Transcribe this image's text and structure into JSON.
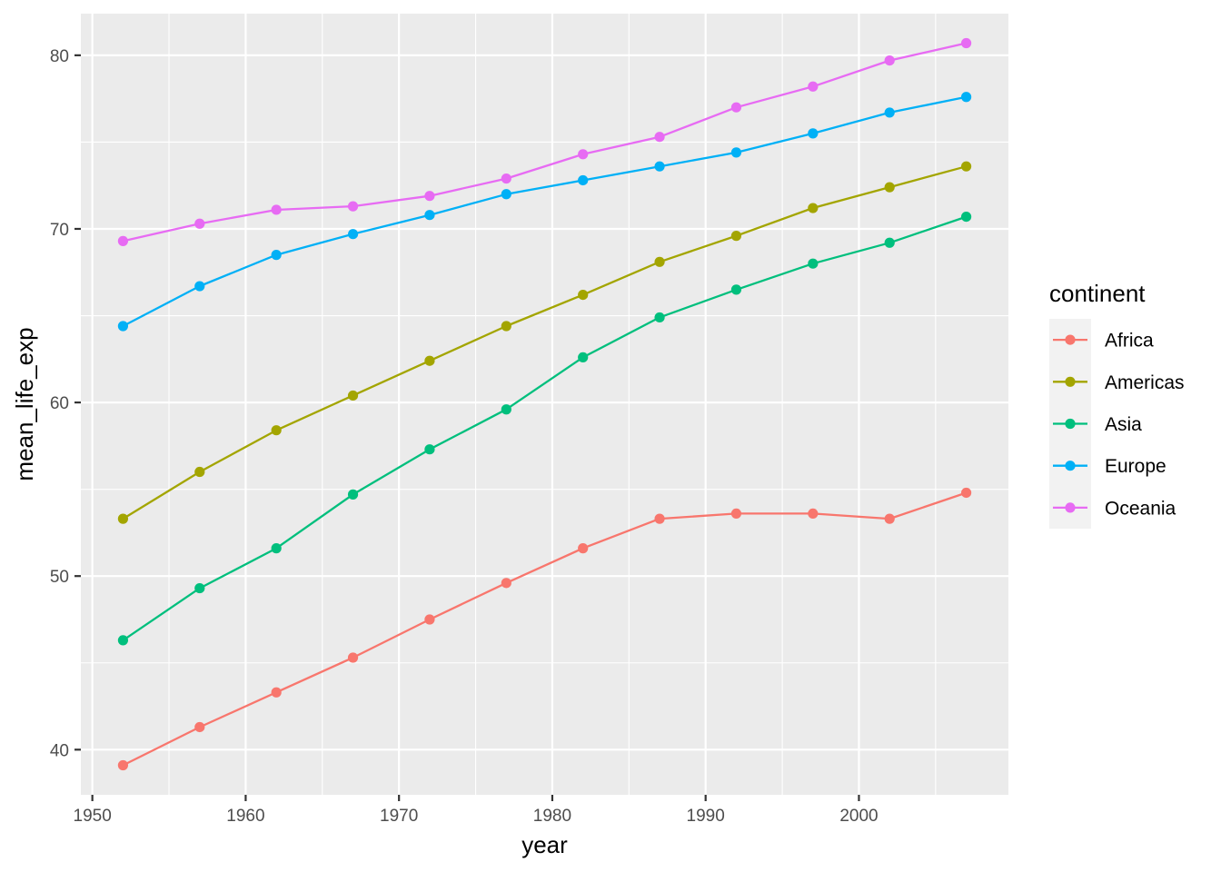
{
  "chart_data": {
    "type": "line",
    "title": "",
    "xlabel": "year",
    "ylabel": "mean_life_exp",
    "xlim": [
      1949.25,
      2009.75
    ],
    "ylim": [
      37.4,
      82.4
    ],
    "x_ticks": [
      1950,
      1960,
      1970,
      1980,
      1990,
      2000
    ],
    "y_ticks": [
      40,
      50,
      60,
      70,
      80
    ],
    "grid": true,
    "legend": {
      "title": "continent",
      "position": "right"
    },
    "x": [
      1952,
      1957,
      1962,
      1967,
      1972,
      1977,
      1982,
      1987,
      1992,
      1997,
      2002,
      2007
    ],
    "series": [
      {
        "name": "Africa",
        "color": "#F8766D",
        "values": [
          39.1,
          41.3,
          43.3,
          45.3,
          47.5,
          49.6,
          51.6,
          53.3,
          53.6,
          53.6,
          53.3,
          54.8
        ]
      },
      {
        "name": "Americas",
        "color": "#A3A500",
        "values": [
          53.3,
          56.0,
          58.4,
          60.4,
          62.4,
          64.4,
          66.2,
          68.1,
          69.6,
          71.2,
          72.4,
          73.6
        ]
      },
      {
        "name": "Asia",
        "color": "#00BF7D",
        "values": [
          46.3,
          49.3,
          51.6,
          54.7,
          57.3,
          59.6,
          62.6,
          64.9,
          66.5,
          68.0,
          69.2,
          70.7
        ]
      },
      {
        "name": "Europe",
        "color": "#00B0F6",
        "values": [
          64.4,
          66.7,
          68.5,
          69.7,
          70.8,
          72.0,
          72.8,
          73.6,
          74.4,
          75.5,
          76.7,
          77.6
        ]
      },
      {
        "name": "Oceania",
        "color": "#E76BF3",
        "values": [
          69.3,
          70.3,
          71.1,
          71.3,
          71.9,
          72.9,
          74.3,
          75.3,
          77.0,
          78.2,
          79.7,
          80.7
        ]
      }
    ]
  }
}
